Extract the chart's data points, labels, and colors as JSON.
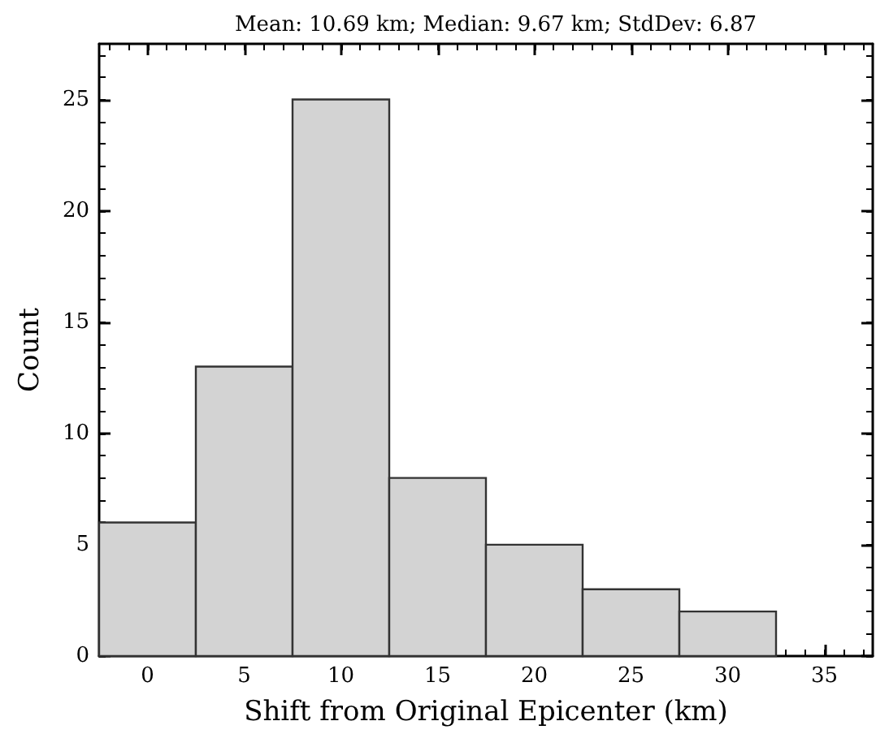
{
  "chart_data": {
    "type": "histogram",
    "title": "Mean: 10.69 km; Median: 9.67 km; StdDev: 6.87",
    "xlabel": "Shift from Original Epicenter (km)",
    "ylabel": "Count",
    "bins": [
      -2.5,
      2.5,
      7.5,
      12.5,
      17.5,
      22.5,
      27.5,
      32.5
    ],
    "values": [
      6,
      13,
      25,
      8,
      5,
      3,
      2
    ],
    "color": "#d3d3d3",
    "xlim": [
      -2.5,
      37.5
    ],
    "xticks": [
      0,
      5,
      10,
      15,
      20,
      25,
      30,
      35
    ],
    "ylim": [
      0,
      27.5
    ],
    "yticks": [
      0,
      5,
      10,
      15,
      20,
      25
    ],
    "grid": false
  }
}
